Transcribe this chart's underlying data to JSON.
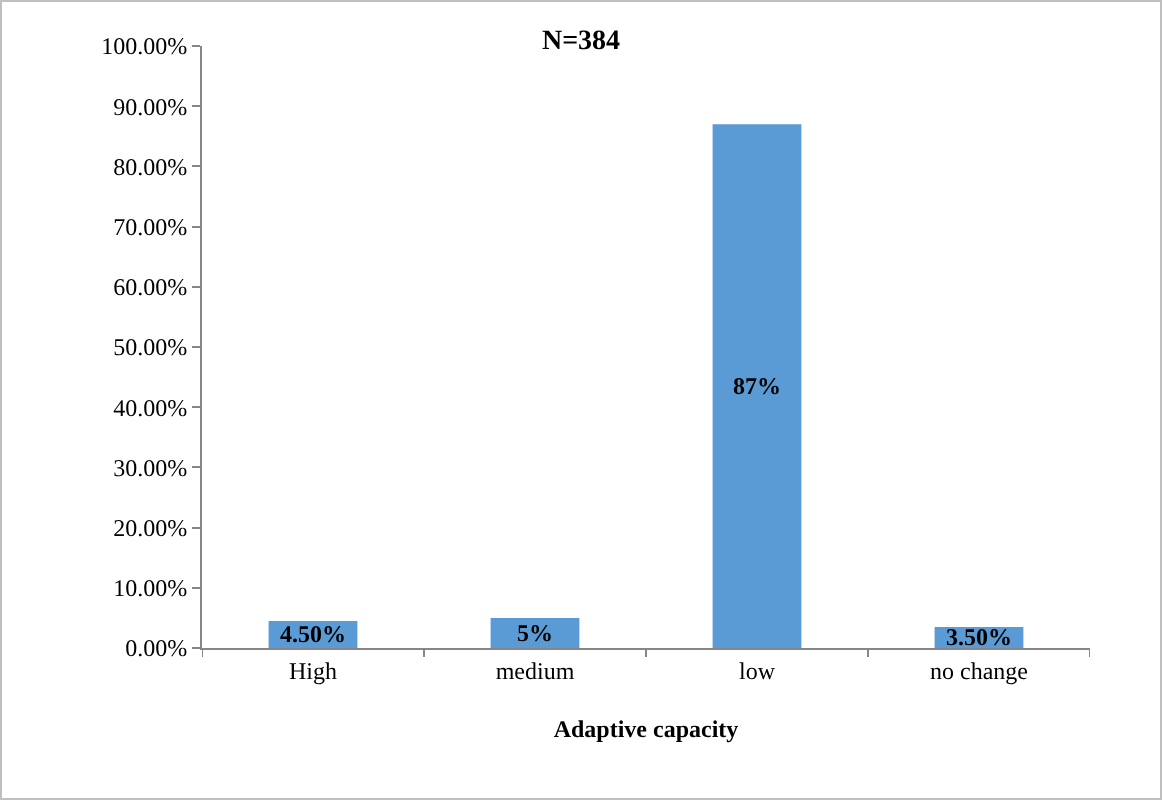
{
  "chart_data": {
    "type": "bar",
    "title": "N=384",
    "xlabel": "Adaptive capacity",
    "categories": [
      "High",
      "medium",
      "low",
      "no change"
    ],
    "values": [
      4.5,
      5,
      87,
      3.5
    ],
    "value_labels": [
      "4.50%",
      "5%",
      "87%",
      "3.50%"
    ],
    "color": "#5b9bd5",
    "ylim": [
      0,
      100
    ],
    "yticks": [
      {
        "value": 0,
        "label": "0.00%"
      },
      {
        "value": 10,
        "label": "10.00%"
      },
      {
        "value": 20,
        "label": "20.00%"
      },
      {
        "value": 30,
        "label": "30.00%"
      },
      {
        "value": 40,
        "label": "40.00%"
      },
      {
        "value": 50,
        "label": "50.00%"
      },
      {
        "value": 60,
        "label": "60.00%"
      },
      {
        "value": 70,
        "label": "70.00%"
      },
      {
        "value": 80,
        "label": "80.00%"
      },
      {
        "value": 90,
        "label": "90.00%"
      },
      {
        "value": 100,
        "label": "100.00%"
      }
    ],
    "grid": false,
    "legend": false
  }
}
